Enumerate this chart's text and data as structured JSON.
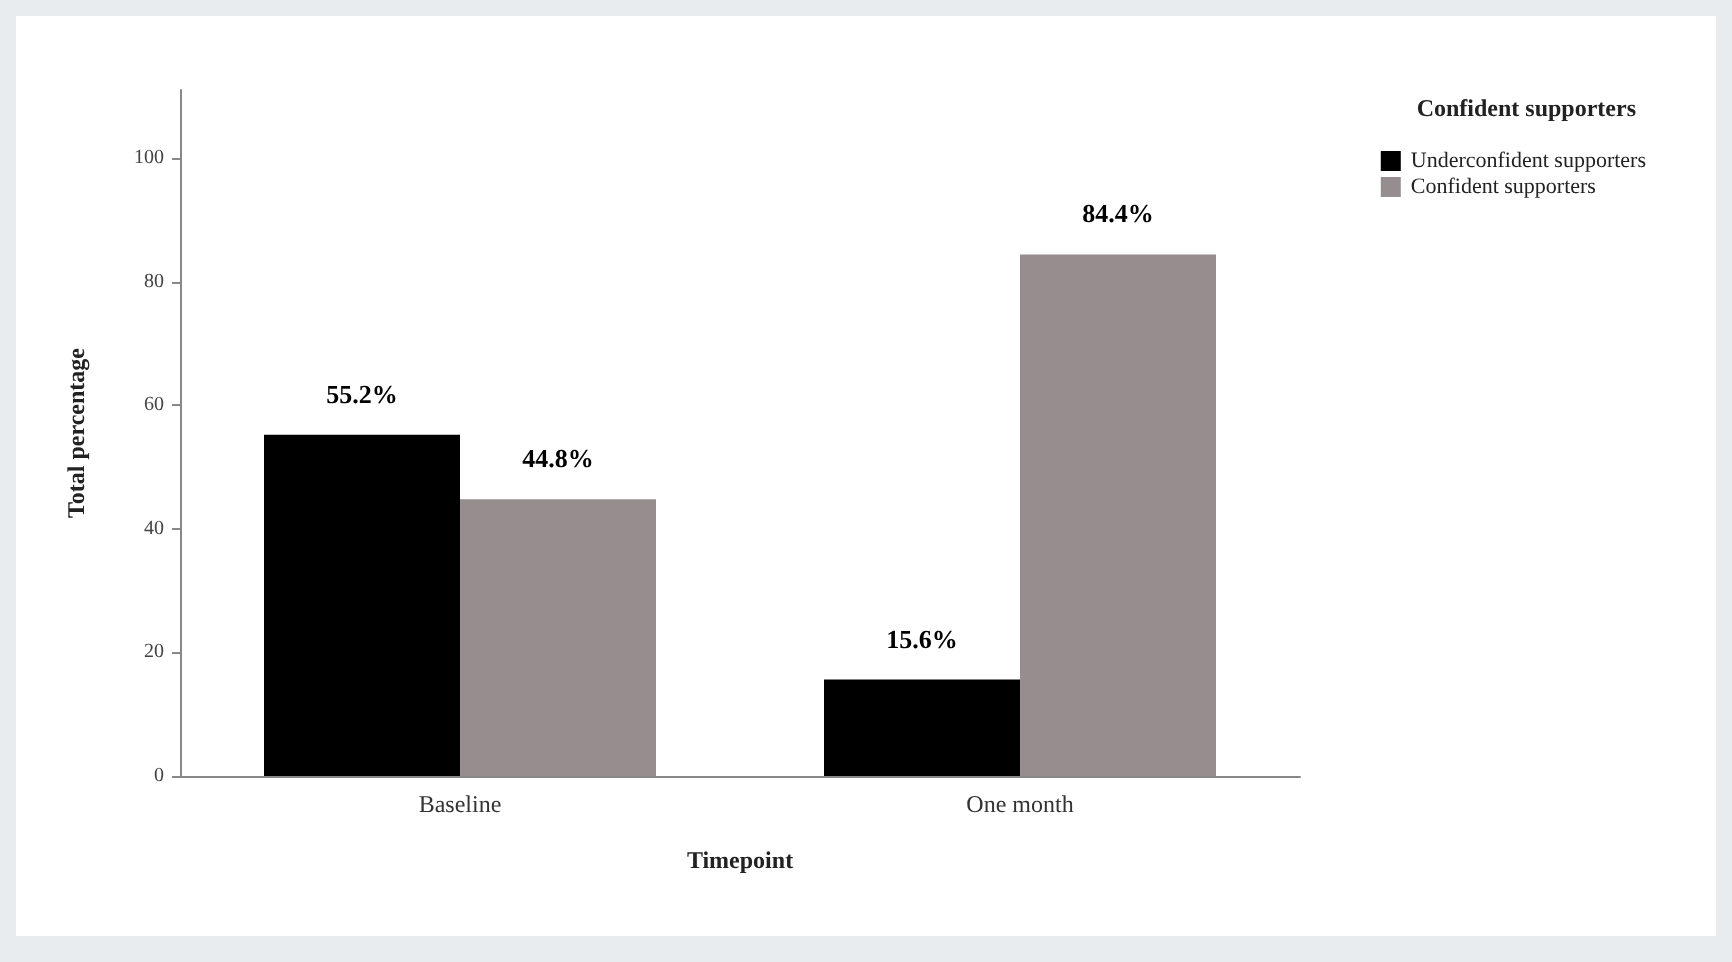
{
  "chart_data": {
    "type": "bar",
    "xlabel": "Timepoint",
    "ylabel": "Total percentage",
    "legend_title": "Confident supporters",
    "categories": [
      "Baseline",
      "One month"
    ],
    "series": [
      {
        "name": "Underconfident supporters",
        "color": "#000000",
        "values": [
          55.2,
          15.6
        ],
        "value_labels": [
          "55.2%",
          "15.6%"
        ]
      },
      {
        "name": "Confident supporters",
        "color": "#968e8e",
        "values": [
          44.8,
          84.4
        ],
        "value_labels": [
          "44.8%",
          "84.4%"
        ]
      }
    ],
    "ylim": [
      0,
      111
    ],
    "yticks": [
      0,
      20,
      40,
      60,
      80,
      100
    ],
    "grid": false,
    "legend": "top right"
  }
}
